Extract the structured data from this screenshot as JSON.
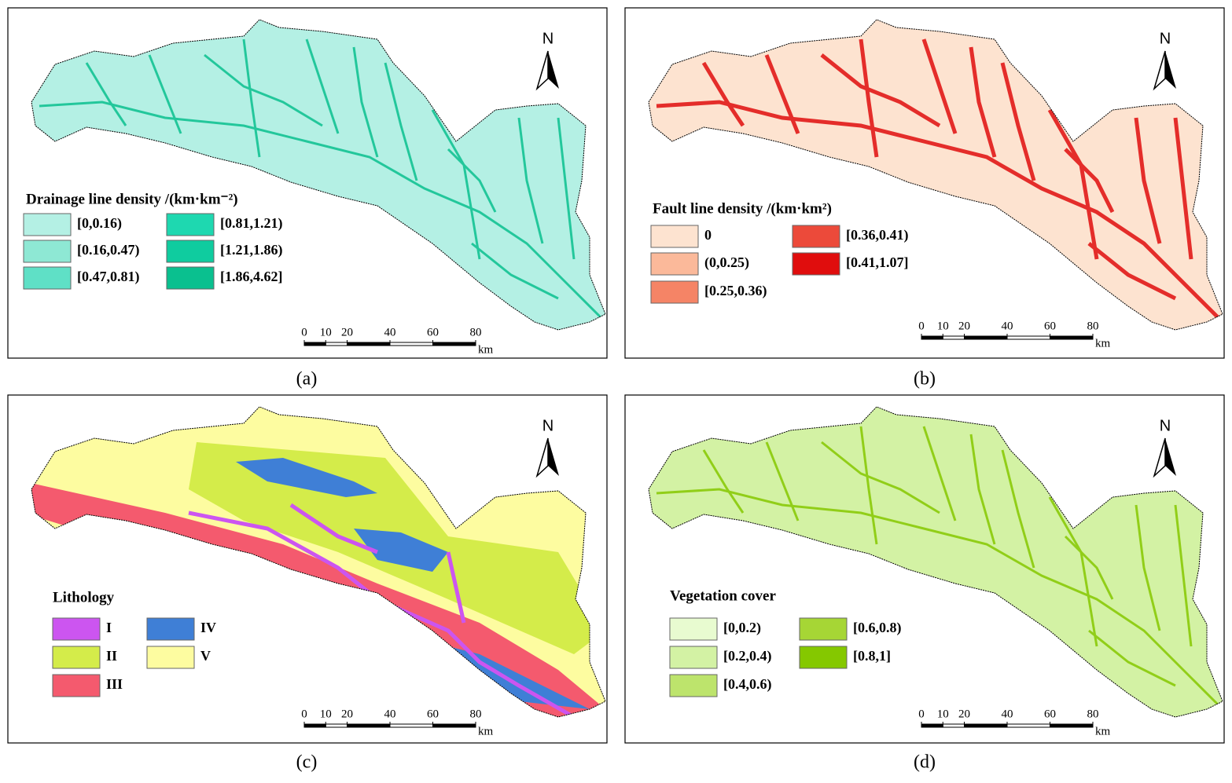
{
  "panels": [
    {
      "label": "(a)",
      "legend_title": "Drainage line density /(km·km⁻²)",
      "legend": [
        {
          "text": "[0,0.16)",
          "color": "#b4f0e4"
        },
        {
          "text": "[0.16,0.47)",
          "color": "#8ee8d4"
        },
        {
          "text": "[0.47,0.81)",
          "color": "#5fe0c6"
        },
        {
          "text": "[0.81,1.21)",
          "color": "#1ed8b0"
        },
        {
          "text": "[1.21,1.86)",
          "color": "#0fcc9f"
        },
        {
          "text": "[1.86,4.62]",
          "color": "#0ac08f"
        }
      ]
    },
    {
      "label": "(b)",
      "legend_title": "Fault line density /(km·km²)",
      "legend": [
        {
          "text": "0",
          "color": "#fde3d0"
        },
        {
          "text": "(0,0.25)",
          "color": "#fbb99a"
        },
        {
          "text": "[0.25,0.36)",
          "color": "#f58466"
        },
        {
          "text": "[0.36,0.41)",
          "color": "#ec4a3a"
        },
        {
          "text": "[0.41,1.07]",
          "color": "#e00d0d"
        }
      ]
    },
    {
      "label": "(c)",
      "legend_title": "Lithology",
      "legend": [
        {
          "text": "I",
          "color": "#cc55f0"
        },
        {
          "text": "II",
          "color": "#d4ec4a"
        },
        {
          "text": "III",
          "color": "#f45a6e"
        },
        {
          "text": "IV",
          "color": "#3f7fd6"
        },
        {
          "text": "V",
          "color": "#fdfca0"
        }
      ]
    },
    {
      "label": "(d)",
      "legend_title": "Vegetation cover",
      "legend": [
        {
          "text": "[0,0.2)",
          "color": "#e8fbd0"
        },
        {
          "text": "[0.2,0.4)",
          "color": "#d3f2a4"
        },
        {
          "text": "[0.4,0.6)",
          "color": "#bde46c"
        },
        {
          "text": "[0.6,0.8)",
          "color": "#a6d635"
        },
        {
          "text": "[0.8,1]",
          "color": "#85c800"
        }
      ]
    }
  ],
  "scale_bar": {
    "ticks": [
      0,
      10,
      20,
      40,
      60,
      80
    ],
    "unit": "km"
  },
  "north": "N"
}
